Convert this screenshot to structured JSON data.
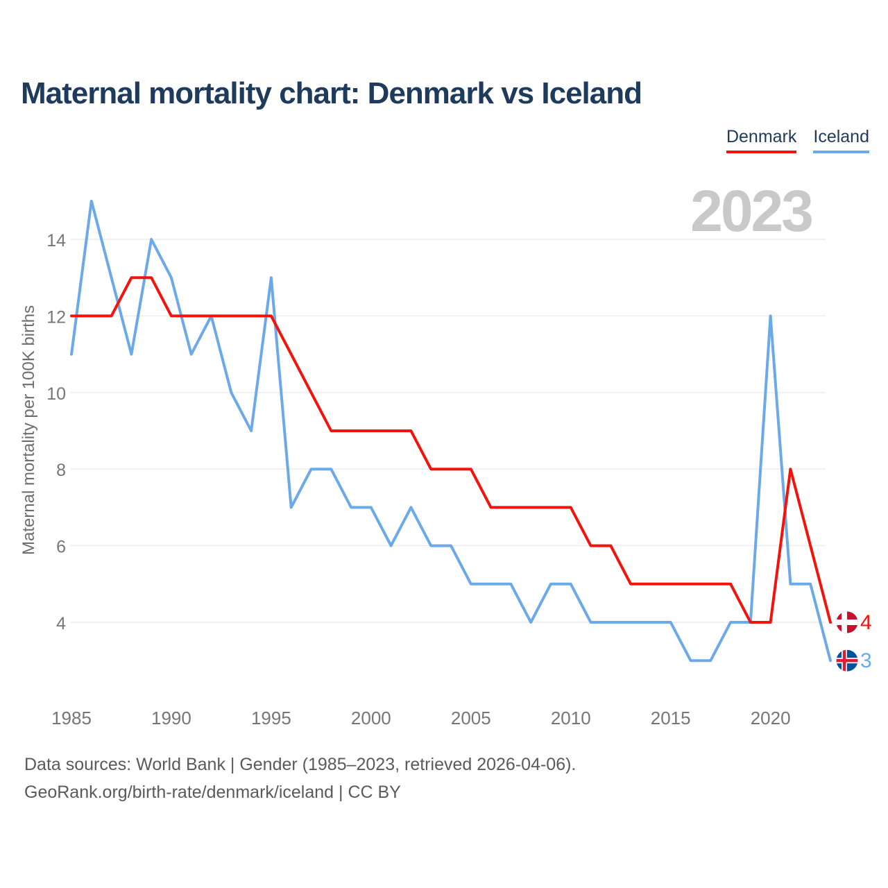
{
  "title": "Maternal mortality chart: Denmark vs Iceland",
  "watermark_year": "2023",
  "footer": {
    "line1": "Data sources: World Bank | Gender (1985–2023, retrieved 2026-04-06).",
    "line2": "GeoRank.org/birth-rate/denmark/iceland | CC BY"
  },
  "colors": {
    "title_text": "#1e3a5c",
    "tick_label": "#767676",
    "grid_line": "#ebebeb",
    "watermark": "#c9c9c9",
    "axis_title": "#6d6d6d",
    "footer_text": "#5a5a5a"
  },
  "chart_data": {
    "type": "line",
    "title": "Maternal mortality chart: Denmark vs Iceland",
    "xlabel": "",
    "ylabel": "Maternal mortality per 100K births",
    "xlim": [
      1985,
      2023
    ],
    "ylim": [
      3,
      15
    ],
    "x_ticks": [
      1985,
      1990,
      1995,
      2000,
      2005,
      2010,
      2015,
      2020
    ],
    "y_ticks": [
      4,
      6,
      8,
      10,
      12,
      14
    ],
    "grid": "horizontal",
    "legend_position": "top-right",
    "x": [
      1985,
      1986,
      1987,
      1988,
      1989,
      1990,
      1991,
      1992,
      1993,
      1994,
      1995,
      1996,
      1997,
      1998,
      1999,
      2000,
      2001,
      2002,
      2003,
      2004,
      2005,
      2006,
      2007,
      2008,
      2009,
      2010,
      2011,
      2012,
      2013,
      2014,
      2015,
      2016,
      2017,
      2018,
      2019,
      2020,
      2021,
      2022,
      2023
    ],
    "series": [
      {
        "name": "Denmark",
        "color": "#f2130d",
        "end_label": "4",
        "flag": {
          "bg": "#c8102e",
          "cross": "#ffffff"
        },
        "values": [
          12,
          12,
          12,
          13,
          13,
          12,
          12,
          12,
          12,
          12,
          12,
          11,
          10,
          9,
          9,
          9,
          9,
          9,
          8,
          8,
          8,
          7,
          7,
          7,
          7,
          7,
          6,
          6,
          5,
          5,
          5,
          5,
          5,
          5,
          4,
          4,
          8,
          6,
          4
        ]
      },
      {
        "name": "Iceland",
        "color": "#6ca9e8",
        "end_label": "3",
        "flag": {
          "bg": "#02529c",
          "cross": "#ffffff",
          "inner": "#dc1e35"
        },
        "values": [
          11,
          15,
          13,
          11,
          14,
          13,
          11,
          12,
          10,
          9,
          13,
          7,
          8,
          8,
          7,
          7,
          6,
          7,
          6,
          6,
          5,
          5,
          5,
          4,
          5,
          5,
          4,
          4,
          4,
          4,
          4,
          3,
          3,
          4,
          4,
          12,
          5,
          5,
          3
        ]
      }
    ]
  }
}
